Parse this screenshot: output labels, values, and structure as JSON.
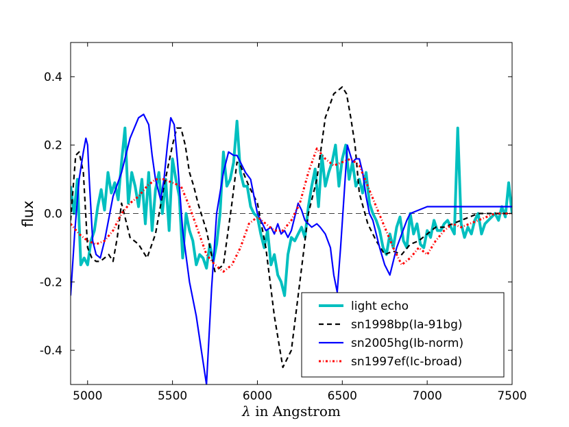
{
  "chart_data": {
    "type": "line",
    "title": "",
    "xlabel": "λ in Angstrom",
    "xlabel_symbol": "λ",
    "xlabel_text": " in Angstrom",
    "ylabel": "flux",
    "xlim": [
      4900,
      7500
    ],
    "ylim": [
      -0.5,
      0.5
    ],
    "xticks": [
      5000,
      5500,
      6000,
      6500,
      7000,
      7500
    ],
    "xtick_labels": [
      "5000",
      "5500",
      "6000",
      "6500",
      "7000",
      "7500"
    ],
    "yticks": [
      -0.4,
      -0.2,
      0.0,
      0.2,
      0.4
    ],
    "ytick_labels": [
      "-0.4",
      "-0.2",
      "0.0",
      "0.2",
      "0.4"
    ],
    "zero_line": true,
    "legend_position": "lower-right",
    "series": [
      {
        "name": "light echo",
        "color": "#00bfbf",
        "style": "solid-thick",
        "x": [
          4900,
          4920,
          4940,
          4960,
          4980,
          5000,
          5020,
          5040,
          5060,
          5080,
          5100,
          5120,
          5140,
          5160,
          5180,
          5200,
          5220,
          5240,
          5260,
          5280,
          5300,
          5320,
          5340,
          5360,
          5380,
          5400,
          5420,
          5440,
          5460,
          5480,
          5500,
          5520,
          5540,
          5560,
          5580,
          5600,
          5620,
          5640,
          5660,
          5680,
          5700,
          5720,
          5740,
          5760,
          5780,
          5800,
          5820,
          5840,
          5860,
          5880,
          5900,
          5920,
          5940,
          5960,
          5980,
          6000,
          6020,
          6040,
          6060,
          6080,
          6100,
          6120,
          6140,
          6160,
          6180,
          6200,
          6220,
          6240,
          6260,
          6280,
          6300,
          6320,
          6340,
          6360,
          6380,
          6400,
          6420,
          6440,
          6460,
          6480,
          6500,
          6520,
          6540,
          6560,
          6580,
          6600,
          6620,
          6640,
          6660,
          6680,
          6700,
          6720,
          6740,
          6760,
          6780,
          6800,
          6820,
          6840,
          6860,
          6880,
          6900,
          6920,
          6940,
          6960,
          6980,
          7000,
          7020,
          7040,
          7060,
          7080,
          7100,
          7120,
          7140,
          7160,
          7180,
          7200,
          7220,
          7240,
          7260,
          7280,
          7300,
          7320,
          7340,
          7360,
          7380,
          7400,
          7420,
          7440,
          7460,
          7480,
          7500
        ],
        "y": [
          0.08,
          0.0,
          0.1,
          -0.15,
          -0.13,
          -0.15,
          -0.08,
          -0.05,
          0.02,
          0.07,
          0.01,
          0.12,
          0.06,
          0.09,
          0.04,
          0.15,
          0.25,
          0.03,
          0.12,
          0.08,
          0.02,
          0.1,
          -0.03,
          0.12,
          -0.05,
          0.07,
          0.12,
          0.0,
          0.1,
          -0.05,
          0.16,
          0.1,
          0.05,
          -0.13,
          0.0,
          -0.05,
          -0.08,
          -0.15,
          -0.12,
          -0.13,
          -0.16,
          -0.09,
          -0.14,
          -0.09,
          0.0,
          0.18,
          0.08,
          0.1,
          0.15,
          0.27,
          0.12,
          0.08,
          0.08,
          0.02,
          0.0,
          -0.01,
          -0.06,
          -0.1,
          -0.05,
          -0.15,
          -0.12,
          -0.18,
          -0.2,
          -0.24,
          -0.12,
          -0.07,
          -0.08,
          -0.06,
          -0.04,
          -0.07,
          0.02,
          0.08,
          0.13,
          0.02,
          0.17,
          0.08,
          0.12,
          0.15,
          0.2,
          0.08,
          0.16,
          0.2,
          0.1,
          0.15,
          0.08,
          0.1,
          0.06,
          0.12,
          0.03,
          0.0,
          -0.02,
          -0.05,
          -0.1,
          -0.12,
          -0.06,
          -0.1,
          -0.04,
          -0.01,
          -0.08,
          -0.1,
          0.0,
          -0.06,
          -0.03,
          -0.09,
          -0.1,
          -0.05,
          -0.07,
          -0.02,
          -0.05,
          -0.05,
          -0.03,
          -0.02,
          -0.04,
          -0.06,
          0.25,
          -0.03,
          -0.07,
          -0.04,
          -0.06,
          -0.02,
          0.0,
          -0.06,
          -0.03,
          -0.02,
          -0.01,
          0.0,
          -0.02,
          0.02,
          -0.01,
          0.09,
          0.0
        ]
      },
      {
        "name": "sn1998bp(Ia-91bg)",
        "color": "#000000",
        "style": "dashed",
        "x": [
          4900,
          4930,
          4950,
          4975,
          5000,
          5025,
          5050,
          5075,
          5100,
          5125,
          5150,
          5175,
          5200,
          5250,
          5300,
          5350,
          5400,
          5450,
          5500,
          5525,
          5550,
          5575,
          5600,
          5625,
          5650,
          5700,
          5750,
          5800,
          5850,
          5880,
          5900,
          5950,
          6000,
          6050,
          6100,
          6150,
          6200,
          6250,
          6300,
          6350,
          6400,
          6450,
          6500,
          6525,
          6550,
          6575,
          6600,
          6650,
          6700,
          6750,
          6800,
          6850,
          6900,
          6950,
          7000,
          7050,
          7100,
          7200,
          7300,
          7400,
          7500
        ],
        "y": [
          -0.02,
          0.17,
          0.18,
          0.12,
          -0.1,
          -0.13,
          -0.14,
          -0.14,
          -0.13,
          -0.12,
          -0.14,
          -0.07,
          0.03,
          -0.07,
          -0.09,
          -0.13,
          -0.06,
          0.08,
          0.2,
          0.25,
          0.25,
          0.2,
          0.12,
          0.08,
          0.03,
          -0.05,
          -0.17,
          -0.15,
          0.03,
          0.15,
          0.14,
          0.08,
          0.03,
          -0.1,
          -0.3,
          -0.45,
          -0.4,
          -0.2,
          0.0,
          0.1,
          0.28,
          0.35,
          0.37,
          0.35,
          0.28,
          0.2,
          0.06,
          -0.03,
          -0.08,
          -0.12,
          -0.11,
          -0.12,
          -0.09,
          -0.08,
          -0.06,
          -0.04,
          -0.04,
          -0.02,
          0.0,
          0.0,
          0.0
        ]
      },
      {
        "name": "sn2005hg(Ib-norm)",
        "color": "#0000ff",
        "style": "solid",
        "x": [
          4900,
          4925,
          4950,
          4975,
          4990,
          5000,
          5010,
          5030,
          5050,
          5075,
          5100,
          5150,
          5200,
          5250,
          5300,
          5330,
          5360,
          5380,
          5400,
          5430,
          5450,
          5470,
          5490,
          5510,
          5530,
          5560,
          5600,
          5640,
          5670,
          5700,
          5730,
          5760,
          5800,
          5830,
          5860,
          5880,
          5900,
          5930,
          5960,
          6000,
          6050,
          6080,
          6100,
          6120,
          6140,
          6160,
          6180,
          6200,
          6240,
          6260,
          6280,
          6320,
          6350,
          6370,
          6400,
          6430,
          6450,
          6470,
          6490,
          6510,
          6530,
          6560,
          6580,
          6600,
          6620,
          6640,
          6660,
          6680,
          6700,
          6720,
          6750,
          6780,
          6820,
          6850,
          6880,
          6900,
          6950,
          7000,
          7100,
          7200,
          7300,
          7400,
          7500
        ],
        "y": [
          -0.24,
          -0.05,
          0.1,
          0.18,
          0.22,
          0.2,
          0.1,
          -0.08,
          -0.12,
          -0.13,
          -0.08,
          0.05,
          0.12,
          0.22,
          0.28,
          0.29,
          0.26,
          0.17,
          0.1,
          0.04,
          0.1,
          0.2,
          0.28,
          0.26,
          0.15,
          -0.05,
          -0.2,
          -0.3,
          -0.4,
          -0.5,
          -0.22,
          0.0,
          0.12,
          0.18,
          0.17,
          0.17,
          0.15,
          0.12,
          0.1,
          0.0,
          -0.05,
          -0.04,
          -0.06,
          -0.03,
          -0.06,
          -0.05,
          -0.07,
          -0.05,
          0.03,
          0.01,
          -0.02,
          -0.04,
          -0.03,
          -0.04,
          -0.06,
          -0.1,
          -0.18,
          -0.23,
          -0.1,
          0.05,
          0.2,
          0.15,
          0.16,
          0.16,
          0.12,
          0.05,
          0.0,
          -0.02,
          -0.06,
          -0.1,
          -0.15,
          -0.18,
          -0.1,
          -0.06,
          -0.02,
          0.0,
          0.01,
          0.02,
          0.02,
          0.02,
          0.02,
          0.02,
          0.02
        ]
      },
      {
        "name": "sn1997ef(Ic-broad)",
        "color": "#ff0000",
        "style": "dashdot",
        "x": [
          4900,
          4950,
          5000,
          5050,
          5100,
          5150,
          5200,
          5250,
          5300,
          5350,
          5400,
          5450,
          5500,
          5550,
          5600,
          5650,
          5700,
          5750,
          5800,
          5850,
          5900,
          5950,
          6000,
          6050,
          6100,
          6150,
          6200,
          6250,
          6300,
          6350,
          6400,
          6450,
          6500,
          6550,
          6600,
          6650,
          6700,
          6750,
          6800,
          6850,
          6900,
          6950,
          7000,
          7050,
          7100,
          7150,
          7200,
          7300,
          7400,
          7500
        ],
        "y": [
          -0.03,
          -0.06,
          -0.08,
          -0.09,
          -0.08,
          -0.05,
          0.0,
          0.03,
          0.05,
          0.08,
          0.1,
          0.1,
          0.09,
          0.08,
          0.02,
          -0.05,
          -0.12,
          -0.15,
          -0.17,
          -0.15,
          -0.1,
          -0.03,
          -0.01,
          -0.03,
          -0.05,
          -0.05,
          -0.02,
          0.03,
          0.12,
          0.19,
          0.16,
          0.14,
          0.15,
          0.16,
          0.14,
          0.08,
          0.02,
          -0.04,
          -0.1,
          -0.15,
          -0.13,
          -0.1,
          -0.12,
          -0.08,
          -0.05,
          -0.03,
          -0.04,
          -0.02,
          0.0,
          0.0
        ]
      }
    ]
  }
}
